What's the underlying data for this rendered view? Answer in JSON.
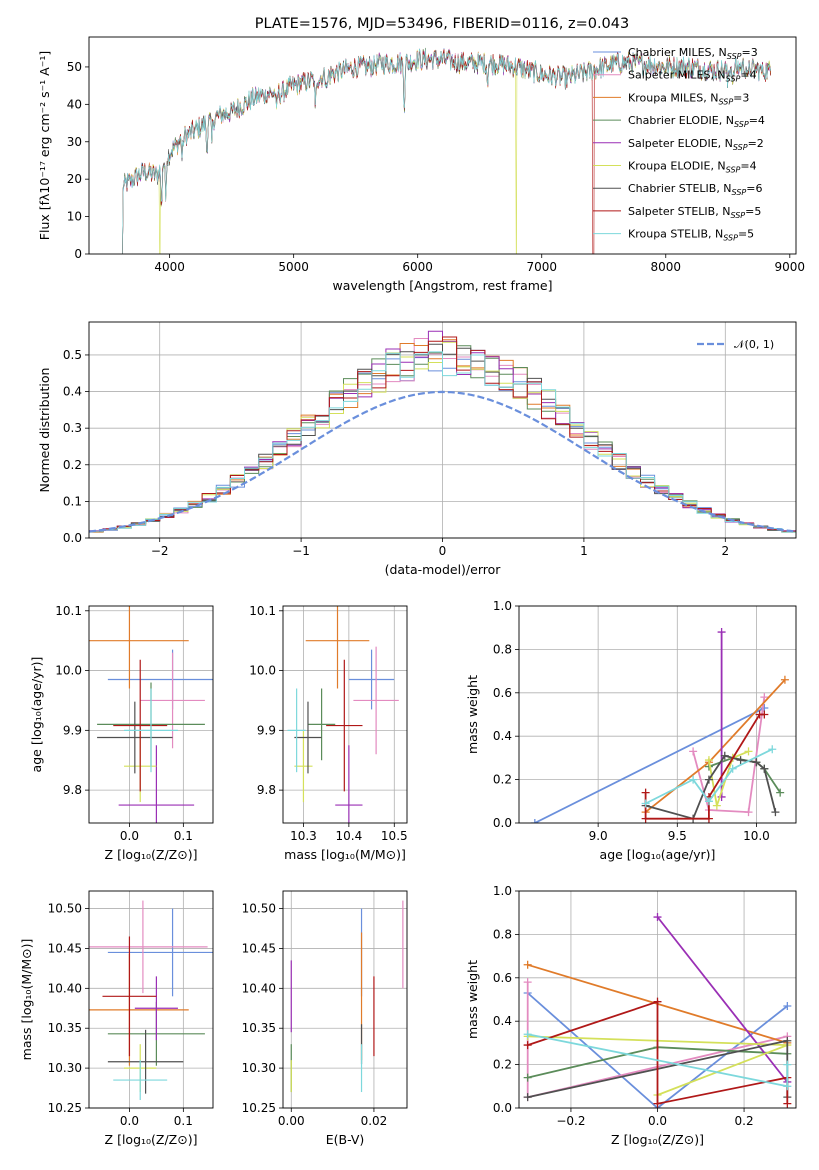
{
  "title": "PLATE=1576, MJD=53496, FIBERID=0116, z=0.043",
  "colors": {
    "Chabrier MILES": "#6a8fdc",
    "Salpeter MILES": "#e38bc0",
    "Kroupa MILES": "#e07b2a",
    "Chabrier ELODIE": "#5b8c5a",
    "Salpeter ELODIE": "#9a2fb5",
    "Kroupa ELODIE": "#d4e05a",
    "Chabrier STELIB": "#505050",
    "Salpeter STELIB": "#b01818",
    "Kroupa STELIB": "#7dd8dc",
    "normal": "#6a8fdc"
  },
  "chart_data": [
    {
      "type": "line",
      "id": "spectrum",
      "xlabel": "wavelength [Angstrom, rest frame]",
      "ylabel": "Flux [fλ10⁻¹⁷ erg cm⁻² s⁻¹ A⁻¹]",
      "xlim": [
        3350,
        9050
      ],
      "ylim": [
        0,
        58
      ],
      "xticks": [
        4000,
        5000,
        6000,
        7000,
        8000,
        9000
      ],
      "yticks": [
        0,
        10,
        20,
        30,
        40,
        50
      ],
      "grid": false,
      "legend_placement": "top-right",
      "legend": [
        {
          "name": "Chabrier MILES",
          "nssp": "3"
        },
        {
          "name": "Salpeter MILES",
          "nssp": "4"
        },
        {
          "name": "Kroupa MILES",
          "nssp": "3"
        },
        {
          "name": "Chabrier ELODIE",
          "nssp": "4"
        },
        {
          "name": "Salpeter ELODIE",
          "nssp": "2"
        },
        {
          "name": "Kroupa ELODIE",
          "nssp": "4"
        },
        {
          "name": "Chabrier STELIB",
          "nssp": "6"
        },
        {
          "name": "Salpeter STELIB",
          "nssp": "5"
        },
        {
          "name": "Kroupa STELIB",
          "nssp": "5"
        }
      ],
      "continuum_wavelength": [
        3620,
        3700,
        3800,
        3900,
        4000,
        4100,
        4200,
        4300,
        4400,
        4500,
        4600,
        4700,
        4800,
        4900,
        5000,
        5100,
        5200,
        5300,
        5400,
        5500,
        5600,
        5700,
        5800,
        5900,
        6000,
        6200,
        6400,
        6600,
        6800,
        7000,
        7200,
        7400,
        7600,
        7800,
        8000,
        8200,
        8400,
        8600,
        8800
      ],
      "continuum_flux": [
        18,
        20,
        22,
        21,
        27,
        31,
        33,
        35,
        37,
        38,
        40,
        42,
        43,
        43,
        45,
        46,
        47,
        48,
        49,
        50,
        50,
        51,
        51,
        51,
        52,
        52,
        51,
        51,
        50,
        48,
        47,
        49,
        51,
        51,
        50,
        50,
        49,
        50,
        49
      ],
      "absorption_lines": [
        {
          "wavelength": 3934,
          "depth": 12
        },
        {
          "wavelength": 3968,
          "depth": 10
        },
        {
          "wavelength": 4102,
          "depth": 6
        },
        {
          "wavelength": 4300,
          "depth": 8
        },
        {
          "wavelength": 4340,
          "depth": 6
        },
        {
          "wavelength": 4861,
          "depth": 6
        },
        {
          "wavelength": 5175,
          "depth": 9
        },
        {
          "wavelength": 5270,
          "depth": 4
        },
        {
          "wavelength": 5892,
          "depth": 12
        },
        {
          "wavelength": 6563,
          "depth": 5
        },
        {
          "wavelength": 8498,
          "depth": 4
        },
        {
          "wavelength": 8542,
          "depth": 5
        },
        {
          "wavelength": 8662,
          "depth": 4
        }
      ],
      "spikes_to_zero": [
        {
          "series": "Kroupa ELODIE",
          "wavelength": 3920
        },
        {
          "series": "Kroupa ELODIE",
          "wavelength": 6795
        },
        {
          "series": "Salpeter STELIB",
          "wavelength": 7415
        }
      ],
      "dropouts": [
        {
          "wavelength": 3620,
          "level": 0
        },
        {
          "wavelength": 8850,
          "level": 2
        }
      ]
    },
    {
      "type": "histogram",
      "id": "residuals",
      "xlabel": "(data-model)/error",
      "ylabel": "Normed distribution",
      "xlim": [
        -2.5,
        2.5
      ],
      "ylim": [
        0,
        0.59
      ],
      "xticks": [
        -2,
        -1,
        0,
        1,
        2
      ],
      "yticks": [
        0.0,
        0.1,
        0.2,
        0.3,
        0.4,
        0.5
      ],
      "grid": true,
      "legend_placement": "top-right",
      "legend_label": "𝒩(0, 1)",
      "bin_width": 0.1
    },
    {
      "type": "scatter",
      "id": "age-vs-z",
      "xlabel": "Z [log₁₀(Z/Z⊙)]",
      "ylabel": "age  [log₁₀(age/yr)]",
      "xlim": [
        -0.075,
        0.155
      ],
      "ylim": [
        9.745,
        10.108
      ],
      "xticks": [
        0.0,
        0.1
      ],
      "yticks": [
        9.8,
        9.9,
        10.0,
        10.1
      ],
      "grid": true,
      "points": [
        {
          "series": "Chabrier MILES",
          "x": 0.08,
          "y": 9.985,
          "xerr": 0.12,
          "yerr": 0.05
        },
        {
          "series": "Salpeter MILES",
          "x": 0.08,
          "y": 9.95,
          "xerr": 0.06,
          "yerr": 0.08
        },
        {
          "series": "Kroupa MILES",
          "x": 0.0,
          "y": 10.05,
          "xerr": 0.11,
          "yerr": 0.08
        },
        {
          "series": "Chabrier ELODIE",
          "x": 0.04,
          "y": 9.91,
          "xerr": 0.1,
          "yerr": 0.07
        },
        {
          "series": "Salpeter ELODIE",
          "x": 0.05,
          "y": 9.775,
          "xerr": 0.07,
          "yerr": 0.1
        },
        {
          "series": "Kroupa ELODIE",
          "x": 0.02,
          "y": 9.84,
          "xerr": 0.03,
          "yerr": 0.06
        },
        {
          "series": "Chabrier STELIB",
          "x": 0.01,
          "y": 9.888,
          "xerr": 0.07,
          "yerr": 0.06
        },
        {
          "series": "Salpeter STELIB",
          "x": 0.02,
          "y": 9.908,
          "xerr": 0.05,
          "yerr": 0.11
        },
        {
          "series": "Kroupa STELIB",
          "x": 0.04,
          "y": 9.9,
          "xerr": 0.05,
          "yerr": 0.07
        }
      ]
    },
    {
      "type": "scatter",
      "id": "age-vs-mass",
      "xlabel": "mass [log₁₀(M/M⊙)]",
      "ylabel": "",
      "xlim": [
        10.255,
        10.528
      ],
      "ylim": [
        9.745,
        10.108
      ],
      "xticks": [
        10.3,
        10.4,
        10.5
      ],
      "yticks": [
        9.8,
        9.9,
        10.0,
        10.1
      ],
      "grid": true,
      "points": [
        {
          "series": "Chabrier MILES",
          "x": 10.45,
          "y": 9.985,
          "xerr": 0.05,
          "yerr": 0.05
        },
        {
          "series": "Salpeter MILES",
          "x": 10.46,
          "y": 9.95,
          "xerr": 0.05,
          "yerr": 0.09
        },
        {
          "series": "Kroupa MILES",
          "x": 10.375,
          "y": 10.05,
          "xerr": 0.07,
          "yerr": 0.08
        },
        {
          "series": "Chabrier ELODIE",
          "x": 10.34,
          "y": 9.91,
          "xerr": 0.03,
          "yerr": 0.06
        },
        {
          "series": "Salpeter ELODIE",
          "x": 10.4,
          "y": 9.775,
          "xerr": 0.03,
          "yerr": 0.1
        },
        {
          "series": "Kroupa ELODIE",
          "x": 10.3,
          "y": 9.84,
          "xerr": 0.02,
          "yerr": 0.06
        },
        {
          "series": "Chabrier STELIB",
          "x": 10.31,
          "y": 9.888,
          "xerr": 0.03,
          "yerr": 0.06
        },
        {
          "series": "Salpeter STELIB",
          "x": 10.39,
          "y": 9.908,
          "xerr": 0.04,
          "yerr": 0.11
        },
        {
          "series": "Kroupa STELIB",
          "x": 10.285,
          "y": 9.9,
          "xerr": 0.02,
          "yerr": 0.07
        }
      ]
    },
    {
      "type": "line",
      "id": "massweight-vs-age",
      "xlabel": "age  [log₁₀(age/yr)]",
      "ylabel": "mass weight",
      "xlim": [
        8.5,
        10.25
      ],
      "ylim": [
        0.0,
        1.0
      ],
      "xticks": [
        9.0,
        9.5,
        10.0
      ],
      "yticks": [
        0.0,
        0.2,
        0.4,
        0.6,
        0.8,
        1.0
      ],
      "grid": true,
      "series": [
        {
          "name": "Chabrier MILES",
          "x": [
            8.6,
            10.05
          ],
          "y": [
            0.0,
            0.53
          ]
        },
        {
          "name": "Salpeter MILES",
          "x": [
            9.6,
            9.7,
            9.95,
            10.05
          ],
          "y": [
            0.33,
            0.06,
            0.05,
            0.58
          ]
        },
        {
          "name": "Kroupa MILES",
          "x": [
            9.3,
            9.7,
            10.18
          ],
          "y": [
            0.05,
            0.28,
            0.66
          ]
        },
        {
          "name": "Chabrier ELODIE",
          "x": [
            9.7,
            9.85,
            10.0,
            10.05,
            10.15
          ],
          "y": [
            0.26,
            0.3,
            0.28,
            0.25,
            0.14
          ]
        },
        {
          "name": "Salpeter ELODIE",
          "x": [
            9.78,
            9.78
          ],
          "y": [
            0.12,
            0.88
          ]
        },
        {
          "name": "Kroupa ELODIE",
          "x": [
            9.7,
            9.75,
            9.85,
            9.95
          ],
          "y": [
            0.29,
            0.08,
            0.3,
            0.33
          ]
        },
        {
          "name": "Chabrier STELIB",
          "x": [
            9.3,
            9.6,
            9.7,
            9.8,
            9.9,
            10.0,
            10.05,
            10.12
          ],
          "y": [
            0.08,
            0.02,
            0.2,
            0.31,
            0.29,
            0.28,
            0.25,
            0.05
          ]
        },
        {
          "name": "Salpeter STELIB",
          "x": [
            9.3,
            9.3,
            9.7,
            9.7,
            10.02,
            10.05
          ],
          "y": [
            0.14,
            0.02,
            0.02,
            0.12,
            0.5,
            0.5
          ]
        },
        {
          "name": "Kroupa STELIB",
          "x": [
            9.3,
            9.6,
            9.7,
            9.85,
            10.1
          ],
          "y": [
            0.09,
            0.2,
            0.1,
            0.25,
            0.34
          ]
        }
      ]
    },
    {
      "type": "scatter",
      "id": "mass-vs-z",
      "xlabel": "Z [log₁₀(Z/Z⊙)]",
      "ylabel": "mass [log₁₀(M/M⊙)]",
      "xlim": [
        -0.075,
        0.155
      ],
      "ylim": [
        10.25,
        10.522
      ],
      "xticks": [
        0.0,
        0.1
      ],
      "yticks": [
        10.25,
        10.3,
        10.35,
        10.4,
        10.45,
        10.5
      ],
      "grid": true,
      "points": [
        {
          "series": "Chabrier MILES",
          "x": 0.08,
          "y": 10.445,
          "xerr": 0.12,
          "yerr": 0.055
        },
        {
          "series": "Salpeter MILES",
          "x": 0.025,
          "y": 10.452,
          "xerr": 0.12,
          "yerr": 0.058
        },
        {
          "series": "Kroupa MILES",
          "x": 0.0,
          "y": 10.373,
          "xerr": 0.11,
          "yerr": 0.07
        },
        {
          "series": "Chabrier ELODIE",
          "x": 0.05,
          "y": 10.343,
          "xerr": 0.09,
          "yerr": 0.04
        },
        {
          "series": "Salpeter ELODIE",
          "x": 0.05,
          "y": 10.375,
          "xerr": 0.04,
          "yerr": 0.04
        },
        {
          "series": "Kroupa ELODIE",
          "x": 0.02,
          "y": 10.3,
          "xerr": 0.03,
          "yerr": 0.03
        },
        {
          "series": "Chabrier STELIB",
          "x": 0.03,
          "y": 10.308,
          "xerr": 0.07,
          "yerr": 0.04
        },
        {
          "series": "Salpeter STELIB",
          "x": 0.0,
          "y": 10.39,
          "xerr": 0.05,
          "yerr": 0.075
        },
        {
          "series": "Kroupa STELIB",
          "x": 0.02,
          "y": 10.285,
          "xerr": 0.05,
          "yerr": 0.025
        }
      ]
    },
    {
      "type": "scatter",
      "id": "mass-vs-ebv",
      "xlabel": "E(B-V)",
      "ylabel": "",
      "xlim": [
        -0.002,
        0.028
      ],
      "ylim": [
        10.25,
        10.522
      ],
      "xticks": [
        0.0,
        0.02
      ],
      "yticks": [
        10.25,
        10.3,
        10.35,
        10.4,
        10.45,
        10.5
      ],
      "grid": true,
      "points": [
        {
          "series": "Chabrier MILES",
          "x": 0.017,
          "y": 10.445,
          "yerr": 0.055
        },
        {
          "series": "Salpeter MILES",
          "x": 0.027,
          "y": 10.455,
          "yerr": 0.055
        },
        {
          "series": "Kroupa MILES",
          "x": 0.017,
          "y": 10.39,
          "yerr": 0.08
        },
        {
          "series": "Chabrier ELODIE",
          "x": 0.0,
          "y": 10.3,
          "yerr": 0.03
        },
        {
          "series": "Salpeter ELODIE",
          "x": 0.0,
          "y": 10.39,
          "yerr": 0.045
        },
        {
          "series": "Kroupa ELODIE",
          "x": 0.0,
          "y": 10.29,
          "yerr": 0.02
        },
        {
          "series": "Chabrier STELIB",
          "x": 0.017,
          "y": 10.33,
          "yerr": 0.025
        },
        {
          "series": "Salpeter STELIB",
          "x": 0.02,
          "y": 10.365,
          "yerr": 0.05
        },
        {
          "series": "Kroupa STELIB",
          "x": 0.017,
          "y": 10.3,
          "yerr": 0.03
        }
      ]
    },
    {
      "type": "line",
      "id": "massweight-vs-z",
      "xlabel": "Z [log₁₀(Z/Z⊙)]",
      "ylabel": "mass weight",
      "xlim": [
        -0.32,
        0.32
      ],
      "ylim": [
        0.0,
        1.0
      ],
      "xticks": [
        -0.2,
        0.0,
        0.2
      ],
      "yticks": [
        0.0,
        0.2,
        0.4,
        0.6,
        0.8,
        1.0
      ],
      "grid": true,
      "series": [
        {
          "name": "Chabrier MILES",
          "x": [
            -0.3,
            0.0,
            0.3
          ],
          "y": [
            0.53,
            0.0,
            0.47
          ]
        },
        {
          "name": "Salpeter MILES",
          "x": [
            -0.3,
            -0.3,
            0.3
          ],
          "y": [
            0.58,
            0.05,
            0.33
          ]
        },
        {
          "name": "Kroupa MILES",
          "x": [
            -0.3,
            0.3
          ],
          "y": [
            0.66,
            0.3
          ]
        },
        {
          "name": "Chabrier ELODIE",
          "x": [
            -0.3,
            0.0,
            0.3
          ],
          "y": [
            0.14,
            0.28,
            0.25
          ]
        },
        {
          "name": "Salpeter ELODIE",
          "x": [
            0.0,
            0.3
          ],
          "y": [
            0.88,
            0.12
          ]
        },
        {
          "name": "Kroupa ELODIE",
          "x": [
            0.0,
            0.3,
            -0.3
          ],
          "y": [
            0.06,
            0.29,
            0.33
          ]
        },
        {
          "name": "Chabrier STELIB",
          "x": [
            -0.3,
            0.3,
            0.3
          ],
          "y": [
            0.05,
            0.31,
            0.05
          ]
        },
        {
          "name": "Salpeter STELIB",
          "x": [
            -0.3,
            0.0,
            0.0,
            0.3,
            0.3
          ],
          "y": [
            0.29,
            0.49,
            0.02,
            0.14,
            0.02
          ]
        },
        {
          "name": "Kroupa STELIB",
          "x": [
            -0.3,
            0.3,
            0.3
          ],
          "y": [
            0.34,
            0.1,
            0.2
          ]
        }
      ]
    }
  ]
}
